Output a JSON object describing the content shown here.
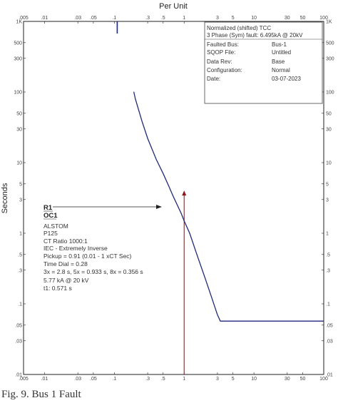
{
  "chart_data": {
    "type": "line",
    "title": "Per Unit",
    "xlabel": "Per Unit",
    "ylabel": "Seconds",
    "xscale": "log",
    "yscale": "log",
    "xlim": [
      0.005,
      100
    ],
    "ylim": [
      0.01,
      1000
    ],
    "grid": false,
    "x_ticks_top": [
      ".005",
      ".01",
      ".03",
      ".05",
      ".1",
      ".3",
      ".5",
      "1",
      "3",
      "5",
      "10",
      "30",
      "50",
      "100"
    ],
    "x_ticks_bottom": [
      ".005",
      ".01",
      ".03",
      ".05",
      ".1",
      ".3",
      ".5",
      "1",
      "3",
      "5",
      "10",
      "30",
      "50",
      "100"
    ],
    "y_ticks_left": [
      "1K",
      "500",
      "300",
      "100",
      "50",
      "30",
      "10",
      "5",
      "3",
      "1",
      ".5",
      ".3",
      ".1",
      ".05",
      ".03",
      ".01"
    ],
    "y_ticks_right": [
      "1K",
      "500",
      "300",
      "100",
      "50",
      "30",
      "10",
      "5",
      "3",
      "1",
      ".5",
      ".3",
      ".1",
      ".05",
      ".03",
      ".01"
    ],
    "series": [
      {
        "name": "R1",
        "color": "#1f2a7a",
        "x": [
          0.19,
          0.2,
          0.25,
          0.3,
          0.4,
          0.5,
          0.6,
          0.7,
          0.8,
          0.91,
          1.0,
          1.2,
          1.5,
          2.0,
          2.5,
          3.0,
          3.3,
          5,
          10,
          30,
          100
        ],
        "y": [
          101,
          80,
          38,
          22,
          11,
          7,
          4.7,
          3.3,
          2.5,
          1.9,
          1.5,
          1.0,
          0.52,
          0.23,
          0.12,
          0.07,
          0.057,
          0.057,
          0.057,
          0.057,
          0.057
        ]
      }
    ],
    "annotations": {
      "inception_marker_x": 0.11,
      "fault_marker_x": 1.0,
      "fault_marker_top_y": 3.5
    }
  },
  "info_box": {
    "title": "Normalized (shifted) TCC",
    "fault_line": "3 Phase (Sym)  fault: 6.495kA @ 20kV",
    "rows": [
      {
        "label": "Faulted Bus:",
        "value": "Bus-1"
      },
      {
        "label": "SQOP File:",
        "value": "Untitled"
      },
      {
        "label": "Data Rev:",
        "value": "Base"
      },
      {
        "label": "Configuration:",
        "value": "Normal"
      },
      {
        "label": "Date:",
        "value": "03-07-2023"
      }
    ]
  },
  "relay": {
    "id": "R1",
    "element": "OC1",
    "lines": [
      "ALSTOM",
      "P125",
      "CT Ratio 1000:1",
      "IEC - Extremely Inverse",
      "Pickup = 0.91 (0.01 - 1 xCT Sec)",
      "Time Dial = 0.28",
      "3x = 2.8 s, 5x = 0.933 s, 8x = 0.356 s",
      "5.77 kA @ 20 kV",
      "t1: 0.571 s"
    ]
  },
  "caption": "Fig. 9.  Bus 1 Fault"
}
